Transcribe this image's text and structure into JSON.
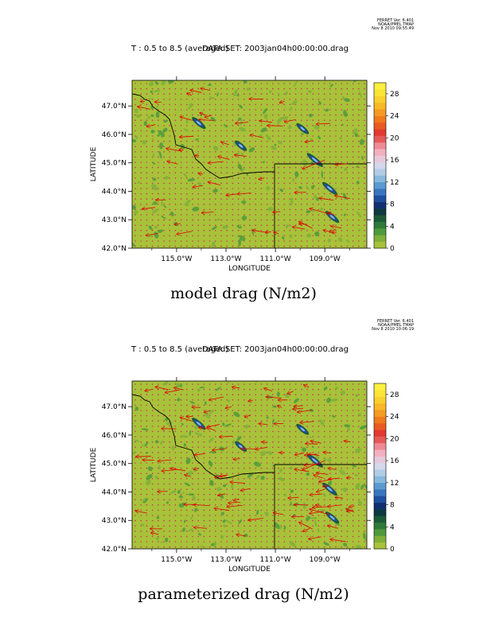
{
  "figure": {
    "panels": [
      {
        "meta": [
          "FERRET Ver. 6.401",
          "NOAA/PMEL TMAP",
          "Nov  8 2010 09:55:49"
        ],
        "header_left": "T : 0.5 to 8.5 (averaged)",
        "header_right": "DATA SET: 2003jan04h00:00:00.drag",
        "caption": "model drag (N/m2)"
      },
      {
        "meta": [
          "FERRET Ver. 6.401",
          "NOAA/PMEL TMAP",
          "Nov  8 2010 10:06:19"
        ],
        "header_left": "T : 0.5 to 8.5 (averaged)",
        "header_right": "DATA SET: 2003jan04h00:00:00.drag",
        "caption": "parameterized drag (N/m2)"
      }
    ],
    "colors": {
      "background_field": "#a8c23a",
      "vector": "#e00000",
      "boundary": "#000000"
    }
  },
  "chart_data": [
    {
      "type": "heatmap",
      "title": "model drag (N/m2)",
      "xlabel": "LONGITUDE",
      "ylabel": "LATITUDE",
      "x_ticks": [
        "115.0°W",
        "113.0°W",
        "111.0°W",
        "109.0°W"
      ],
      "x_tick_values": [
        -115,
        -113,
        -111,
        -109
      ],
      "y_ticks": [
        "42.0°N",
        "43.0°N",
        "44.0°N",
        "45.0°N",
        "46.0°N",
        "47.0°N"
      ],
      "y_tick_values": [
        42,
        43,
        44,
        45,
        46,
        47
      ],
      "xlim": [
        -116.8,
        -107.3
      ],
      "ylim": [
        42.0,
        47.9
      ],
      "colorbar": {
        "ticks": [
          "0",
          "4",
          "8",
          "12",
          "16",
          "20",
          "24",
          "28"
        ],
        "range": [
          0,
          30
        ]
      },
      "features": [
        {
          "lon": -114.1,
          "lat": 46.4,
          "value": 10
        },
        {
          "lon": -109.9,
          "lat": 46.2,
          "value": 8
        },
        {
          "lon": -109.4,
          "lat": 45.1,
          "value": 14
        },
        {
          "lon": -108.8,
          "lat": 44.1,
          "value": 12
        },
        {
          "lon": -108.7,
          "lat": 43.1,
          "value": 10
        },
        {
          "lon": -112.4,
          "lat": 45.6,
          "value": 7
        }
      ],
      "vectors": [
        {
          "lon": -114.4,
          "lat": 46.5,
          "u": -1.0,
          "v": 0.3
        },
        {
          "lon": -109.0,
          "lat": 45.1,
          "u": -2.0,
          "v": -0.8
        },
        {
          "lon": -108.8,
          "lat": 43.2,
          "u": -1.8,
          "v": 0.5
        },
        {
          "lon": -109.5,
          "lat": 42.7,
          "u": -1.2,
          "v": 0.6
        }
      ]
    },
    {
      "type": "heatmap",
      "title": "parameterized drag (N/m2)",
      "xlabel": "LONGITUDE",
      "ylabel": "LATITUDE",
      "x_ticks": [
        "115.0°W",
        "113.0°W",
        "111.0°W",
        "109.0°W"
      ],
      "x_tick_values": [
        -115,
        -113,
        -111,
        -109
      ],
      "y_ticks": [
        "42.0°N",
        "43.0°N",
        "44.0°N",
        "45.0°N",
        "46.0°N",
        "47.0°N"
      ],
      "y_tick_values": [
        42,
        43,
        44,
        45,
        46,
        47
      ],
      "xlim": [
        -116.8,
        -107.3
      ],
      "ylim": [
        42.0,
        47.9
      ],
      "colorbar": {
        "ticks": [
          "0",
          "4",
          "8",
          "12",
          "16",
          "20",
          "24",
          "28"
        ],
        "range": [
          0,
          30
        ]
      },
      "features": [
        {
          "lon": -114.1,
          "lat": 46.4,
          "value": 10
        },
        {
          "lon": -109.9,
          "lat": 46.2,
          "value": 8
        },
        {
          "lon": -109.4,
          "lat": 45.1,
          "value": 14
        },
        {
          "lon": -108.8,
          "lat": 44.1,
          "value": 12
        },
        {
          "lon": -108.7,
          "lat": 43.1,
          "value": 10
        },
        {
          "lon": -112.4,
          "lat": 45.6,
          "value": 7
        }
      ],
      "vectors": [
        {
          "lon": -114.4,
          "lat": 46.5,
          "u": -1.0,
          "v": 0.3
        },
        {
          "lon": -109.0,
          "lat": 45.1,
          "u": -2.0,
          "v": -0.8
        },
        {
          "lon": -108.8,
          "lat": 43.2,
          "u": -1.8,
          "v": 0.5
        },
        {
          "lon": -109.5,
          "lat": 42.7,
          "u": -1.2,
          "v": 0.6
        }
      ]
    }
  ]
}
